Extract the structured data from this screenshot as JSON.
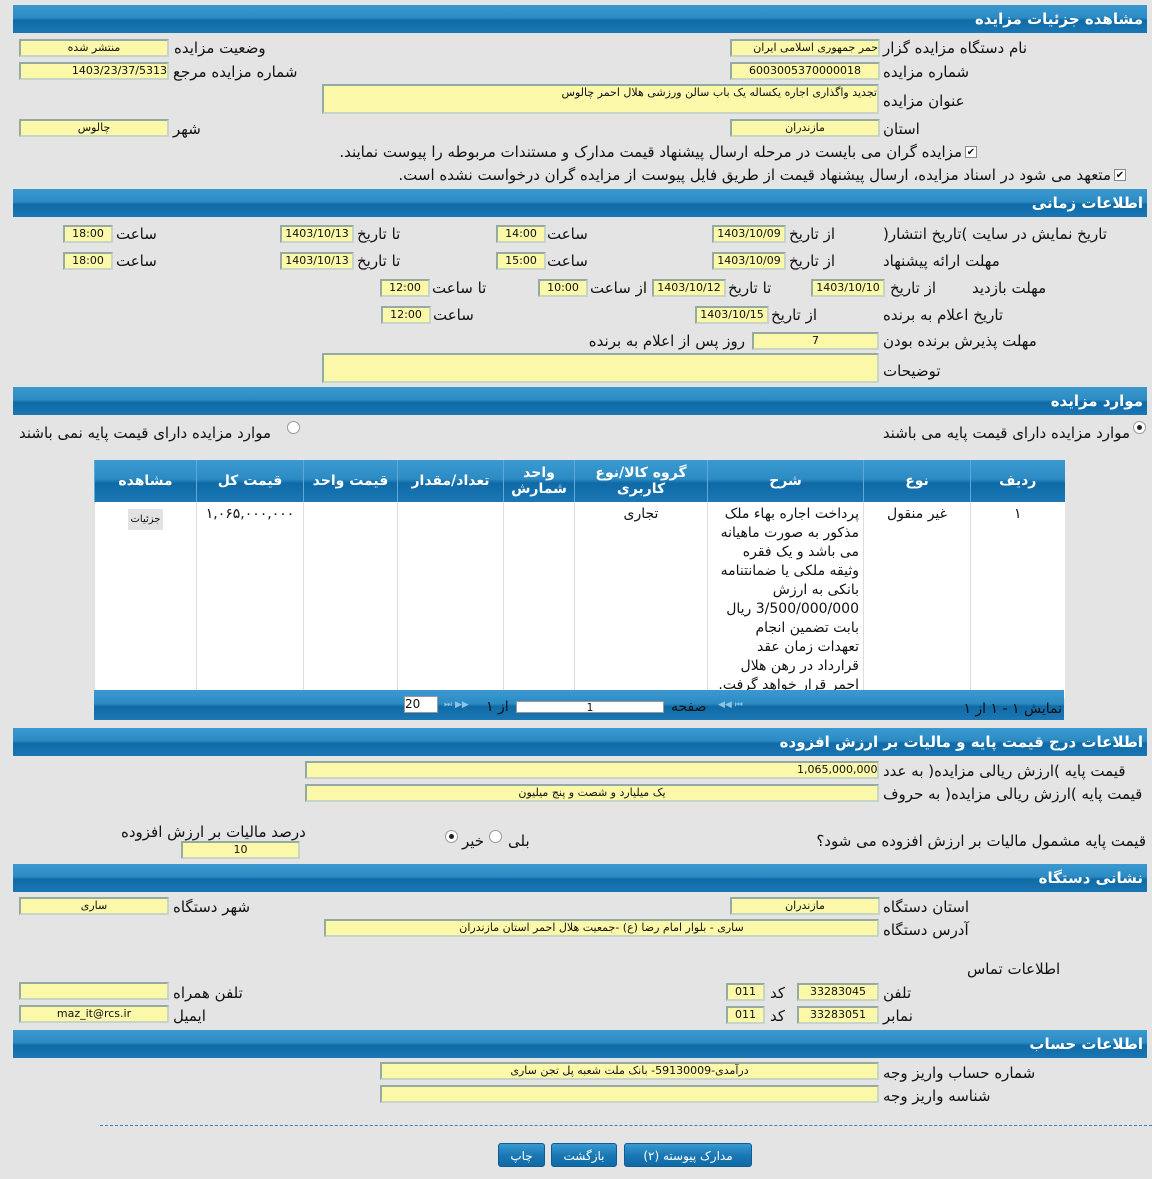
{
  "sections": {
    "details": "مشاهده جزئیات مزایده",
    "time": "اطلاعات زمانی",
    "items": "موارد مزایده",
    "price": "اطلاعات درج قیمت پایه و مالیات بر ارزش افزوده",
    "address": "نشانی دستگاه",
    "account": "اطلاعات حساب"
  },
  "details": {
    "org_label": "نام دستگاه مزایده گزار",
    "org_value": "حمر جمهوری اسلامی ایران",
    "status_label": "وضعیت مزایده",
    "status_value": "منتشر شده",
    "number_label": "شماره مزایده",
    "number_value": "6003005370000018",
    "ref_label": "شماره مزایده مرجع",
    "ref_value": "1403/23/37/5313",
    "title_label": "عنوان مزایده",
    "title_value": "تجدید واگذاری اجاره یکساله یک باب سالن ورزشی هلال احمر چالوس",
    "province_label": "استان",
    "province_value": "مازندران",
    "city_label": "شهر",
    "city_value": "چالوس",
    "check1": "مزایده گران می بایست در مرحله ارسال پیشنهاد قیمت مدارک و مستندات مربوطه را پیوست نمایند.",
    "check2": "متعهد می شود در اسناد مزایده، ارسال پیشنهاد قیمت از طریق فایل پیوست از مزایده گران درخواست نشده است."
  },
  "time": {
    "from_date": "از تاریخ",
    "to_date": "تا تاریخ",
    "hour": "ساعت",
    "from_hour": "از ساعت",
    "to_hour": "تا ساعت",
    "publish_label": "تاریخ نمایش در سایت )تاریخ انتشار(",
    "publish_from": "1403/10/09",
    "publish_from_time": "14:00",
    "publish_to": "1403/10/13",
    "publish_to_time": "18:00",
    "offer_label": "مهلت ارائه پیشنهاد",
    "offer_from": "1403/10/09",
    "offer_from_time": "15:00",
    "offer_to": "1403/10/13",
    "offer_to_time": "18:00",
    "visit_label": "مهلت بازدید",
    "visit_from": "1403/10/10",
    "visit_to": "1403/10/12",
    "visit_from_time": "10:00",
    "visit_to_time": "12:00",
    "announce_label": "تاریخ اعلام به برنده",
    "announce_from": "1403/10/15",
    "announce_time": "12:00",
    "accept_label": "مهلت پذیرش برنده بودن",
    "accept_value": "7",
    "accept_suffix": "روز پس از اعلام به برنده",
    "notes_label": "توضیحات",
    "notes_value": ""
  },
  "items": {
    "radio_with_base": "موارد مزایده دارای قیمت پایه می باشند",
    "radio_without_base": "موارد مزایده دارای قیمت پایه نمی باشند",
    "columns": [
      "ردیف",
      "نوع",
      "شرح",
      "گروه کالا/نوع کاربری",
      "واحد شمارش",
      "تعداد/مقدار",
      "قیمت واحد",
      "قیمت کل",
      "مشاهده"
    ],
    "rows": [
      {
        "row": "۱",
        "type": "غیر منقول",
        "desc": "پرداخت اجاره بهاء ملک مذکور به صورت ماهیانه می باشد و یک فقره وثیقه ملکی یا ضمانتنامه بانکی به ارزش 3/500/000/000 ریال بابت تضمین انجام تعهدات زمان عقد قرارداد در رهن هلال احمر قرار خواهد گرفت.",
        "group": "تجاری",
        "unit": "",
        "qty": "",
        "unit_price": "",
        "total": "۱,۰۶۵,۰۰۰,۰۰۰",
        "view": "جزئیات"
      }
    ],
    "pager": {
      "page_label": "صفحه",
      "page": "1",
      "of": "از ۱",
      "page_size": "20",
      "summary": "نمایش ۱ - ۱ از ۱"
    }
  },
  "price": {
    "num_label": "قیمت پایه )ارزش ریالی مزایده( به عدد",
    "num_value": "1,065,000,000",
    "words_label": "قیمت پایه )ارزش ریالی مزایده( به حروف",
    "words_value": "یک میلیارد و شصت و پنج میلیون",
    "vat_question": "قیمت پایه مشمول مالیات بر ارزش افزوده می شود؟",
    "yes": "بلی",
    "no": "خیر",
    "vat_percent_label": "درصد مالیات بر ارزش افزوده",
    "vat_percent_value": "10"
  },
  "address": {
    "province_label": "استان دستگاه",
    "province_value": "مازندران",
    "city_label": "شهر دستگاه",
    "city_value": "ساری",
    "address_label": "آدرس دستگاه",
    "address_value": "ساری - بلوار امام رضا (ع) -جمعیت هلال احمر استان مازندران",
    "contact_title": "اطلاعات تماس",
    "phone_label": "تلفن",
    "phone_value": "33283045",
    "code_label": "کد",
    "phone_code": "011",
    "fax_label": "نمابر",
    "fax_value": "33283051",
    "fax_code": "011",
    "mobile_label": "تلفن همراه",
    "mobile_value": "",
    "email_label": "ایمیل",
    "email_value": "maz_it@rcs.ir"
  },
  "account": {
    "number_label": "شماره حساب واریز وجه",
    "number_value": "درآمدی-59130009- بانک ملت شعبه پل تجن ساری",
    "id_label": "شناسه واریز وجه",
    "id_value": ""
  },
  "buttons": {
    "print": "چاپ",
    "back": "بازگشت",
    "attachments": "مدارک پیوسته (۲)"
  }
}
